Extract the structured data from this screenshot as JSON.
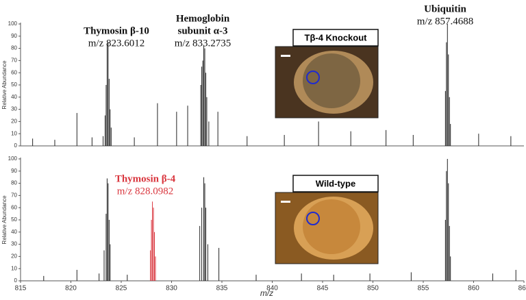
{
  "chart_data": [
    {
      "type": "stem",
      "ylabel": "Relative Abundance",
      "xlim": [
        815,
        865
      ],
      "ylim": [
        0,
        100
      ],
      "yticks": [
        0,
        10,
        20,
        30,
        40,
        50,
        60,
        70,
        80,
        90,
        100
      ],
      "series": [
        {
          "color": "#222222",
          "x": [
            816.2,
            818.4,
            820.6,
            822.1,
            823.2,
            823.4,
            823.5,
            823.6,
            823.7,
            823.8,
            823.9,
            824.0,
            826.3,
            828.6,
            830.5,
            831.6,
            832.9,
            833.0,
            833.1,
            833.2,
            833.3,
            833.4,
            833.5,
            833.7,
            834.6,
            837.5,
            841.2,
            844.6,
            847.8,
            851.3,
            854.0,
            857.2,
            857.3,
            857.4,
            857.5,
            857.6,
            857.7,
            860.5,
            863.7
          ],
          "values": [
            6,
            5,
            27,
            7,
            8,
            25,
            50,
            83,
            85,
            55,
            30,
            15,
            7,
            35,
            28,
            33,
            50,
            65,
            70,
            82,
            80,
            60,
            40,
            20,
            28,
            8,
            9,
            20,
            12,
            13,
            9,
            45,
            85,
            100,
            75,
            40,
            18,
            10,
            8
          ]
        }
      ],
      "annotations": [
        {
          "title": [
            "Thymosin β-10"
          ],
          "subtitle": "m/z 823.6012",
          "color": "#111111"
        },
        {
          "title": [
            "Hemoglobin",
            "subunit α-3"
          ],
          "subtitle": "m/z 833.2735",
          "color": "#111111"
        },
        {
          "title": [
            "Ubiquitin"
          ],
          "subtitle": "m/z 857.4688",
          "color": "#111111"
        }
      ],
      "inset": {
        "title": "Tβ-4 Knockout"
      }
    },
    {
      "type": "stem",
      "ylabel": "Relative Abundance",
      "xlabel": "m/z",
      "xlim": [
        815,
        865
      ],
      "ylim": [
        0,
        100
      ],
      "yticks": [
        0,
        10,
        20,
        30,
        40,
        50,
        60,
        70,
        80,
        90,
        100
      ],
      "xticks": [
        815,
        820,
        825,
        830,
        835,
        840,
        845,
        850,
        855,
        860,
        865
      ],
      "series": [
        {
          "color": "#222222",
          "x": [
            817.3,
            820.6,
            822.8,
            823.3,
            823.5,
            823.6,
            823.7,
            823.8,
            823.9,
            825.6,
            832.8,
            833.0,
            833.2,
            833.3,
            833.4,
            833.6,
            834.7,
            838.4,
            842.9,
            846.1,
            849.7,
            853.8,
            857.2,
            857.3,
            857.4,
            857.5,
            857.6,
            857.7,
            861.9,
            864.2
          ],
          "values": [
            4,
            9,
            6,
            25,
            55,
            84,
            80,
            50,
            30,
            5,
            45,
            60,
            85,
            80,
            60,
            30,
            27,
            5,
            6,
            5,
            6,
            7,
            50,
            90,
            100,
            80,
            45,
            20,
            6,
            9
          ]
        },
        {
          "color": "#d9363e",
          "x": [
            827.9,
            828.0,
            828.1,
            828.2,
            828.3,
            828.4
          ],
          "values": [
            25,
            50,
            65,
            60,
            40,
            20
          ]
        }
      ],
      "annotations": [
        {
          "title": [
            "Thymosin β-4"
          ],
          "subtitle": "m/z 828.0982",
          "color": "#d9363e"
        }
      ],
      "inset": {
        "title": "Wild-type"
      }
    }
  ]
}
